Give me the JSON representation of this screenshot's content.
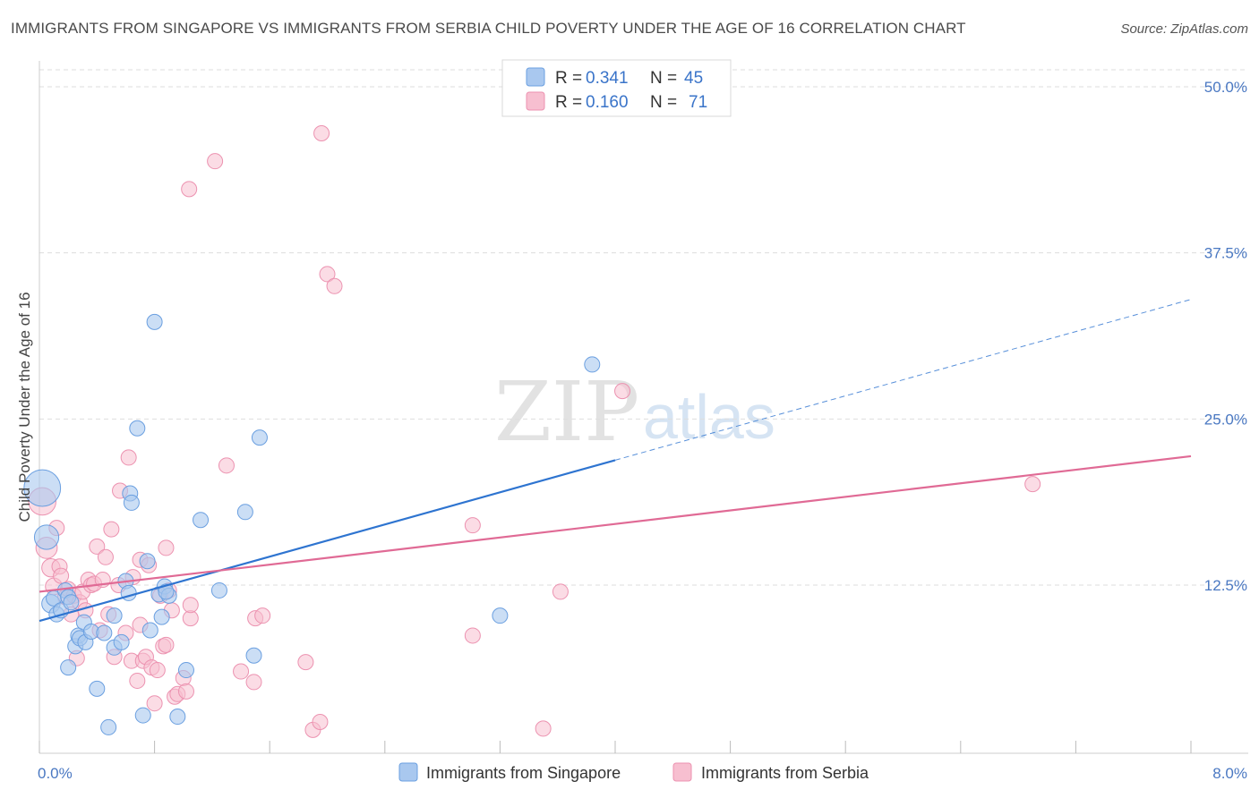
{
  "title": "IMMIGRANTS FROM SINGAPORE VS IMMIGRANTS FROM SERBIA CHILD POVERTY UNDER THE AGE OF 16 CORRELATION CHART",
  "source": "Source: ZipAtlas.com",
  "watermark": {
    "zip": "ZIP",
    "atlas": "atlas"
  },
  "colors": {
    "singapore_fill": "#a9c8ef",
    "singapore_stroke": "#6a9fe0",
    "singapore_line": "#2e74d0",
    "serbia_fill": "#f7bfd0",
    "serbia_stroke": "#ec92b0",
    "serbia_line": "#e06a95",
    "grid": "#dddddd",
    "tick_label": "#4a78c2"
  },
  "legend": {
    "rows": [
      {
        "r_label": "R =",
        "r_value": "0.341",
        "n_label": "N =",
        "n_value": "45"
      },
      {
        "r_label": "R =",
        "r_value": "0.160",
        "n_label": "N =",
        "n_value": "71"
      }
    ]
  },
  "chart_data": {
    "type": "scatter",
    "title": "IMMIGRANTS FROM SINGAPORE VS IMMIGRANTS FROM SERBIA CHILD POVERTY UNDER THE AGE OF 16 CORRELATION CHART",
    "xlabel": "",
    "ylabel": "Child Poverty Under the Age of 16",
    "xlim": [
      0,
      8
    ],
    "ylim": [
      0,
      52
    ],
    "x_tick_labels": [
      {
        "value": 0,
        "label": "0.0%"
      },
      {
        "value": 8,
        "label": "8.0%"
      }
    ],
    "y_tick_labels": [
      {
        "value": 12.5,
        "label": "12.5%"
      },
      {
        "value": 25,
        "label": "25.0%"
      },
      {
        "value": 37.5,
        "label": "37.5%"
      },
      {
        "value": 50,
        "label": "50.0%"
      }
    ],
    "legend_position": "top-center",
    "series": [
      {
        "name": "Immigrants from Singapore",
        "R": 0.341,
        "N": 45,
        "trend": {
          "x0": 0,
          "y0": 9.8,
          "x1": 4.0,
          "y1": 21.9,
          "x_extend": 8.0,
          "y_extend": 34.0
        },
        "points": [
          [
            0.02,
            19.8,
            2.4
          ],
          [
            0.05,
            16.1,
            1.6
          ],
          [
            0.08,
            11.1,
            1.2
          ],
          [
            0.1,
            11.5,
            1.0
          ],
          [
            0.12,
            10.3,
            1.0
          ],
          [
            0.15,
            10.6,
            1
          ],
          [
            0.18,
            12.1,
            1
          ],
          [
            0.2,
            11.6,
            1
          ],
          [
            0.22,
            11.2,
            1
          ],
          [
            0.2,
            6.3,
            1
          ],
          [
            0.25,
            7.9,
            1
          ],
          [
            0.27,
            8.7,
            1
          ],
          [
            0.28,
            8.5,
            1
          ],
          [
            0.32,
            8.2,
            1
          ],
          [
            0.31,
            9.7,
            1
          ],
          [
            0.36,
            9.0,
            1
          ],
          [
            0.4,
            4.7,
            1
          ],
          [
            0.45,
            8.9,
            1
          ],
          [
            0.48,
            1.8,
            1
          ],
          [
            0.52,
            10.2,
            1
          ],
          [
            0.52,
            7.8,
            1
          ],
          [
            0.57,
            8.2,
            1
          ],
          [
            0.6,
            12.8,
            1
          ],
          [
            0.62,
            11.9,
            1
          ],
          [
            0.63,
            19.4,
            1
          ],
          [
            0.64,
            18.7,
            1
          ],
          [
            0.68,
            24.3,
            1
          ],
          [
            0.72,
            2.7,
            1
          ],
          [
            0.75,
            14.3,
            1
          ],
          [
            0.77,
            9.1,
            1
          ],
          [
            0.8,
            32.3,
            1
          ],
          [
            0.83,
            11.8,
            1
          ],
          [
            0.85,
            10.1,
            1
          ],
          [
            0.87,
            12.4,
            1
          ],
          [
            0.9,
            11.7,
            1
          ],
          [
            0.96,
            2.6,
            1
          ],
          [
            1.02,
            6.1,
            1
          ],
          [
            1.12,
            17.4,
            1
          ],
          [
            1.25,
            12.1,
            1
          ],
          [
            1.43,
            18.0,
            1
          ],
          [
            1.49,
            7.2,
            1
          ],
          [
            1.53,
            23.6,
            1
          ],
          [
            3.2,
            10.2,
            1
          ],
          [
            3.84,
            29.1,
            1
          ],
          [
            0.88,
            12.0,
            1
          ]
        ]
      },
      {
        "name": "Immigrants from Serbia",
        "R": 0.16,
        "N": 71,
        "trend": {
          "x0": 0,
          "y0": 12.0,
          "x1": 8.0,
          "y1": 22.2
        },
        "points": [
          [
            0.02,
            18.8,
            1.8
          ],
          [
            0.05,
            15.3,
            1.4
          ],
          [
            0.08,
            13.8,
            1.2
          ],
          [
            0.1,
            12.4,
            1.1
          ],
          [
            0.12,
            16.8,
            1
          ],
          [
            0.14,
            13.9,
            1
          ],
          [
            0.15,
            13.2,
            1
          ],
          [
            0.18,
            11.6,
            1
          ],
          [
            0.2,
            12.2,
            1
          ],
          [
            0.22,
            10.3,
            1
          ],
          [
            0.24,
            11.7,
            1
          ],
          [
            0.26,
            7.0,
            1
          ],
          [
            0.28,
            11.2,
            1
          ],
          [
            0.3,
            12.0,
            1
          ],
          [
            0.32,
            10.6,
            1
          ],
          [
            0.34,
            12.9,
            1
          ],
          [
            0.36,
            12.5,
            1
          ],
          [
            0.38,
            12.6,
            1
          ],
          [
            0.4,
            15.4,
            1
          ],
          [
            0.42,
            9.1,
            1
          ],
          [
            0.44,
            12.9,
            1
          ],
          [
            0.46,
            14.6,
            1
          ],
          [
            0.48,
            10.3,
            1
          ],
          [
            0.5,
            16.7,
            1
          ],
          [
            0.52,
            7.1,
            1
          ],
          [
            0.55,
            12.5,
            1
          ],
          [
            0.56,
            19.6,
            1
          ],
          [
            0.6,
            8.9,
            1
          ],
          [
            0.62,
            22.1,
            1
          ],
          [
            0.64,
            6.8,
            1
          ],
          [
            0.65,
            13.1,
            1
          ],
          [
            0.68,
            5.3,
            1
          ],
          [
            0.7,
            14.4,
            1
          ],
          [
            0.72,
            6.8,
            1
          ],
          [
            0.74,
            7.1,
            1
          ],
          [
            0.76,
            14.0,
            1
          ],
          [
            0.78,
            6.3,
            1
          ],
          [
            0.8,
            3.6,
            1
          ],
          [
            0.82,
            6.1,
            1
          ],
          [
            0.84,
            11.7,
            1
          ],
          [
            0.86,
            7.9,
            1
          ],
          [
            0.88,
            8.0,
            1
          ],
          [
            0.88,
            15.3,
            1
          ],
          [
            0.92,
            10.6,
            1
          ],
          [
            0.94,
            4.1,
            1
          ],
          [
            0.96,
            4.3,
            1
          ],
          [
            1.0,
            5.5,
            1
          ],
          [
            1.02,
            4.5,
            1
          ],
          [
            1.05,
            10.0,
            1
          ],
          [
            1.05,
            11.0,
            1
          ],
          [
            1.3,
            21.5,
            1
          ],
          [
            1.4,
            6.0,
            1
          ],
          [
            1.49,
            5.2,
            1
          ],
          [
            1.5,
            10.0,
            1
          ],
          [
            1.55,
            10.2,
            1
          ],
          [
            1.85,
            6.7,
            1
          ],
          [
            1.9,
            1.6,
            1
          ],
          [
            1.95,
            2.2,
            1
          ],
          [
            2.0,
            35.9,
            1
          ],
          [
            2.05,
            35.0,
            1
          ],
          [
            1.96,
            46.5,
            1
          ],
          [
            1.22,
            44.4,
            1
          ],
          [
            1.04,
            42.3,
            1
          ],
          [
            3.01,
            17.0,
            1
          ],
          [
            3.01,
            8.7,
            1
          ],
          [
            3.5,
            1.7,
            1
          ],
          [
            3.62,
            12.0,
            1
          ],
          [
            4.05,
            27.1,
            1
          ],
          [
            6.9,
            20.1,
            1
          ],
          [
            0.7,
            9.5,
            1
          ],
          [
            0.9,
            12.1,
            1
          ]
        ]
      }
    ]
  },
  "axis": {
    "ylabel": "Child Poverty Under the Age of 16"
  },
  "bottom_legend": [
    {
      "label": "Immigrants from Singapore"
    },
    {
      "label": "Immigrants from Serbia"
    }
  ]
}
